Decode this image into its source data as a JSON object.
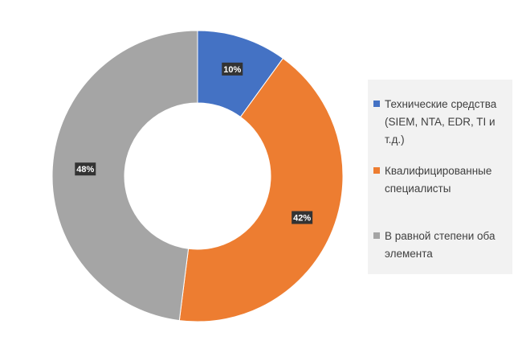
{
  "chart_data": {
    "type": "pie",
    "style": "donut",
    "title": "",
    "slices": [
      {
        "label": "Технические средства (SIEM, NTA, EDR, TI и т.д.)",
        "value": 10,
        "display": "10%",
        "color": "#4472c4"
      },
      {
        "label": "Квалифицированные специалисты",
        "value": 42,
        "display": "42%",
        "color": "#ed7d31"
      },
      {
        "label": "В равной степени оба элемента",
        "value": 48,
        "display": "48%",
        "color": "#a5a5a5"
      }
    ],
    "legend_position": "right",
    "data_labels": true
  },
  "legend": {
    "items": [
      {
        "label": "Технические средства (SIEM, NTA, EDR, TI и т.д.)",
        "color": "#4472c4"
      },
      {
        "label": "Квалифицированные специалисты",
        "color": "#ed7d31"
      },
      {
        "label": "В равной степени оба элемента",
        "color": "#a5a5a5"
      }
    ]
  }
}
